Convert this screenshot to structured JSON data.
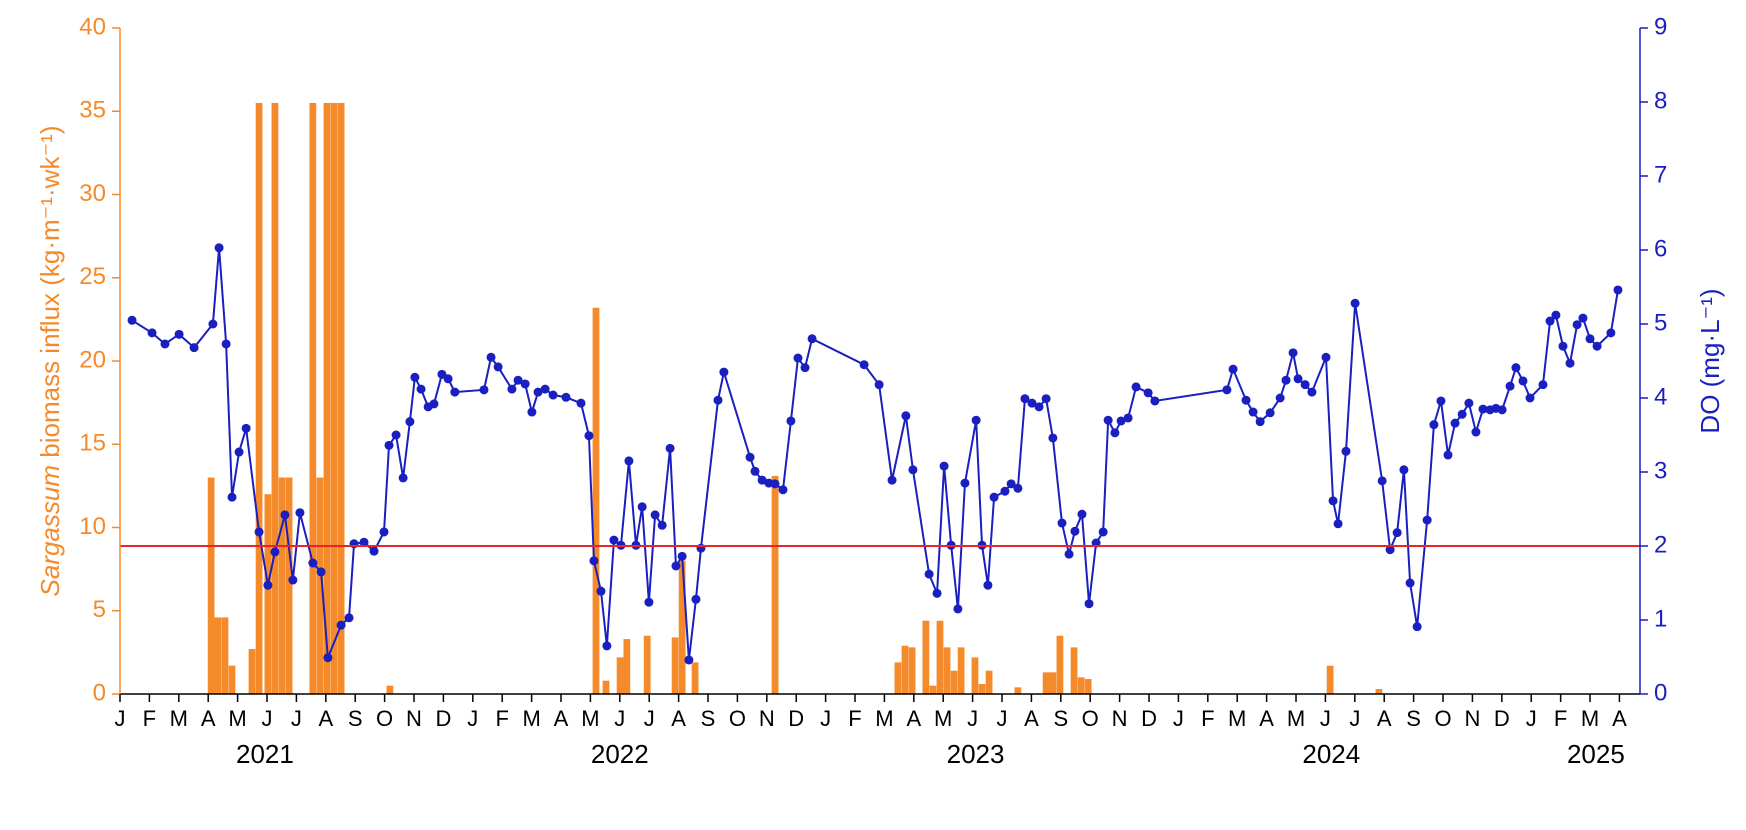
{
  "chart_data": {
    "type": "combo",
    "ylabel": {
      "italic": "Sargassum",
      "text": "biomass influx (kg·m⁻¹·wk⁻¹)"
    },
    "y2label": "DO (mg·L⁻¹)",
    "xlim": [
      0,
      51.7
    ],
    "xticks": [
      {
        "value": 0,
        "label": "J"
      },
      {
        "value": 1,
        "label": "F"
      },
      {
        "value": 2,
        "label": "M"
      },
      {
        "value": 3,
        "label": "A"
      },
      {
        "value": 4,
        "label": "M"
      },
      {
        "value": 5,
        "label": "J"
      },
      {
        "value": 6,
        "label": "J"
      },
      {
        "value": 7,
        "label": "A"
      },
      {
        "value": 8,
        "label": "S"
      },
      {
        "value": 9,
        "label": "O"
      },
      {
        "value": 10,
        "label": "N"
      },
      {
        "value": 11,
        "label": "D"
      },
      {
        "value": 12,
        "label": "J"
      },
      {
        "value": 13,
        "label": "F"
      },
      {
        "value": 14,
        "label": "M"
      },
      {
        "value": 15,
        "label": "A"
      },
      {
        "value": 16,
        "label": "M"
      },
      {
        "value": 17,
        "label": "J"
      },
      {
        "value": 18,
        "label": "J"
      },
      {
        "value": 19,
        "label": "A"
      },
      {
        "value": 20,
        "label": "S"
      },
      {
        "value": 21,
        "label": "O"
      },
      {
        "value": 22,
        "label": "N"
      },
      {
        "value": 23,
        "label": "D"
      },
      {
        "value": 24,
        "label": "J"
      },
      {
        "value": 25,
        "label": "F"
      },
      {
        "value": 26,
        "label": "M"
      },
      {
        "value": 27,
        "label": "A"
      },
      {
        "value": 28,
        "label": "M"
      },
      {
        "value": 29,
        "label": "J"
      },
      {
        "value": 30,
        "label": "J"
      },
      {
        "value": 31,
        "label": "A"
      },
      {
        "value": 32,
        "label": "S"
      },
      {
        "value": 33,
        "label": "O"
      },
      {
        "value": 34,
        "label": "N"
      },
      {
        "value": 35,
        "label": "D"
      },
      {
        "value": 36,
        "label": "J"
      },
      {
        "value": 37,
        "label": "F"
      },
      {
        "value": 38,
        "label": "M"
      },
      {
        "value": 39,
        "label": "A"
      },
      {
        "value": 40,
        "label": "M"
      },
      {
        "value": 41,
        "label": "J"
      },
      {
        "value": 42,
        "label": "J"
      },
      {
        "value": 43,
        "label": "A"
      },
      {
        "value": 44,
        "label": "S"
      },
      {
        "value": 45,
        "label": "O"
      },
      {
        "value": 46,
        "label": "N"
      },
      {
        "value": 47,
        "label": "D"
      },
      {
        "value": 48,
        "label": "J"
      },
      {
        "value": 49,
        "label": "F"
      },
      {
        "value": 50,
        "label": "M"
      },
      {
        "value": 51,
        "label": "A"
      }
    ],
    "year_labels": [
      {
        "value": 4.93,
        "label": "2021"
      },
      {
        "value": 17.0,
        "label": "2022"
      },
      {
        "value": 29.1,
        "label": "2023"
      },
      {
        "value": 41.2,
        "label": "2024"
      },
      {
        "value": 50.2,
        "label": "2025"
      }
    ],
    "ylim": [
      0,
      40
    ],
    "yticks": [
      0,
      5,
      10,
      15,
      20,
      25,
      30,
      35,
      40
    ],
    "y2lim": [
      0,
      9
    ],
    "y2ticks": [
      0,
      1,
      2,
      3,
      4,
      5,
      6,
      7,
      8,
      9
    ],
    "reference_line": {
      "value": 2,
      "axis": "y2",
      "color": "#e8262a"
    },
    "series": [
      {
        "type": "bar",
        "color": "#f58a2a",
        "x": [
          3.1,
          3.33,
          3.57,
          3.81,
          4.49,
          4.73,
          5.03,
          5.27,
          5.51,
          5.75,
          6.56,
          6.8,
          7.04,
          7.28,
          7.52,
          9.18,
          16.19,
          16.53,
          17.01,
          17.24,
          17.93,
          18.88,
          19.12,
          19.56,
          22.28,
          26.46,
          26.7,
          26.94,
          27.41,
          27.65,
          27.89,
          28.13,
          28.37,
          28.61,
          29.08,
          29.32,
          29.56,
          30.54,
          31.5,
          31.73,
          31.97,
          32.45,
          32.69,
          32.93,
          41.16,
          42.82
        ],
        "values": [
          13,
          4.6,
          4.6,
          1.7,
          2.7,
          35.5,
          12,
          35.5,
          13,
          13,
          35.5,
          13,
          35.5,
          35.5,
          35.5,
          0.5,
          23.2,
          0.8,
          2.2,
          3.3,
          3.5,
          3.4,
          8,
          1.9,
          13.1,
          1.9,
          2.9,
          2.8,
          4.4,
          0.5,
          4.4,
          2.8,
          1.4,
          2.8,
          2.2,
          0.6,
          1.4,
          0.4,
          1.3,
          1.3,
          3.5,
          2.8,
          1.0,
          0.9,
          1.7,
          0.3
        ]
      },
      {
        "type": "line",
        "axis": "y2",
        "color": "#1a1fbf",
        "x": [
          0.41,
          1.09,
          1.53,
          2.01,
          2.52,
          3.16,
          3.37,
          3.61,
          3.81,
          4.05,
          4.29,
          4.73,
          5.03,
          5.27,
          5.61,
          5.88,
          6.12,
          6.56,
          6.84,
          7.07,
          7.52,
          7.79,
          7.96,
          8.3,
          8.64,
          8.98,
          9.15,
          9.39,
          9.63,
          9.86,
          10.03,
          10.24,
          10.48,
          10.68,
          10.95,
          11.16,
          11.39,
          12.38,
          12.62,
          12.86,
          13.33,
          13.54,
          13.78,
          14.01,
          14.22,
          14.46,
          14.73,
          15.17,
          15.68,
          15.95,
          16.12,
          16.36,
          16.56,
          16.8,
          17.04,
          17.31,
          17.55,
          17.76,
          17.99,
          18.2,
          18.44,
          18.71,
          18.91,
          19.12,
          19.35,
          19.59,
          19.76,
          20.34,
          20.54,
          21.43,
          21.6,
          21.84,
          22.07,
          22.28,
          22.55,
          22.82,
          23.06,
          23.3,
          23.54,
          25.31,
          25.82,
          26.26,
          26.73,
          26.97,
          27.52,
          27.79,
          28.03,
          28.27,
          28.5,
          28.74,
          29.12,
          29.32,
          29.52,
          29.73,
          30.1,
          30.31,
          30.54,
          30.78,
          31.02,
          31.26,
          31.5,
          31.73,
          32.04,
          32.28,
          32.48,
          32.72,
          32.96,
          33.2,
          33.44,
          33.61,
          33.84,
          34.05,
          34.29,
          34.56,
          34.97,
          35.2,
          37.65,
          37.86,
          38.3,
          38.54,
          38.78,
          39.12,
          39.46,
          39.66,
          39.9,
          40.07,
          40.31,
          40.54,
          41.02,
          41.26,
          41.43,
          41.7,
          42.01,
          42.93,
          43.2,
          43.44,
          43.67,
          43.88,
          44.12,
          44.46,
          44.69,
          44.93,
          45.17,
          45.41,
          45.65,
          45.88,
          46.12,
          46.36,
          46.6,
          46.8,
          47.01,
          47.28,
          47.48,
          47.72,
          47.96,
          48.4,
          48.64,
          48.84,
          49.08,
          49.32,
          49.56,
          49.76,
          50.0,
          50.24,
          50.71,
          50.95
        ],
        "values": [
          5.05,
          4.88,
          4.73,
          4.86,
          4.68,
          5.0,
          6.03,
          4.73,
          2.66,
          3.27,
          3.59,
          2.19,
          1.47,
          1.92,
          2.42,
          1.54,
          2.45,
          1.77,
          1.65,
          0.49,
          0.93,
          1.03,
          2.03,
          2.05,
          1.93,
          2.19,
          3.36,
          3.5,
          2.92,
          3.68,
          4.28,
          4.12,
          3.88,
          3.92,
          4.32,
          4.26,
          4.08,
          4.11,
          4.55,
          4.42,
          4.12,
          4.24,
          4.19,
          3.81,
          4.08,
          4.12,
          4.04,
          4.01,
          3.93,
          3.49,
          1.8,
          1.39,
          0.65,
          2.08,
          2.01,
          3.15,
          2.01,
          2.53,
          1.24,
          2.42,
          2.28,
          3.32,
          1.73,
          1.86,
          0.46,
          1.28,
          1.97,
          3.97,
          4.35,
          3.2,
          3.01,
          2.89,
          2.85,
          2.84,
          2.76,
          3.69,
          4.54,
          4.41,
          4.8,
          4.45,
          4.18,
          2.89,
          3.76,
          3.03,
          1.62,
          1.36,
          3.08,
          2.01,
          1.15,
          2.85,
          3.7,
          2.01,
          1.47,
          2.66,
          2.74,
          2.84,
          2.78,
          3.99,
          3.93,
          3.88,
          3.99,
          3.46,
          2.31,
          1.89,
          2.2,
          2.43,
          1.22,
          2.04,
          2.19,
          3.7,
          3.53,
          3.69,
          3.73,
          4.15,
          4.07,
          3.96,
          4.11,
          4.39,
          3.97,
          3.81,
          3.68,
          3.8,
          4.0,
          4.24,
          4.61,
          4.26,
          4.18,
          4.08,
          4.55,
          2.61,
          2.3,
          3.28,
          5.28,
          2.88,
          1.95,
          2.18,
          3.03,
          1.5,
          0.91,
          2.35,
          3.64,
          3.96,
          3.23,
          3.66,
          3.78,
          3.93,
          3.54,
          3.85,
          3.84,
          3.86,
          3.84,
          4.16,
          4.41,
          4.23,
          4.0,
          4.18,
          5.04,
          5.12,
          4.7,
          4.47,
          4.99,
          5.08,
          4.8,
          4.7,
          4.88,
          5.46
        ]
      }
    ]
  }
}
